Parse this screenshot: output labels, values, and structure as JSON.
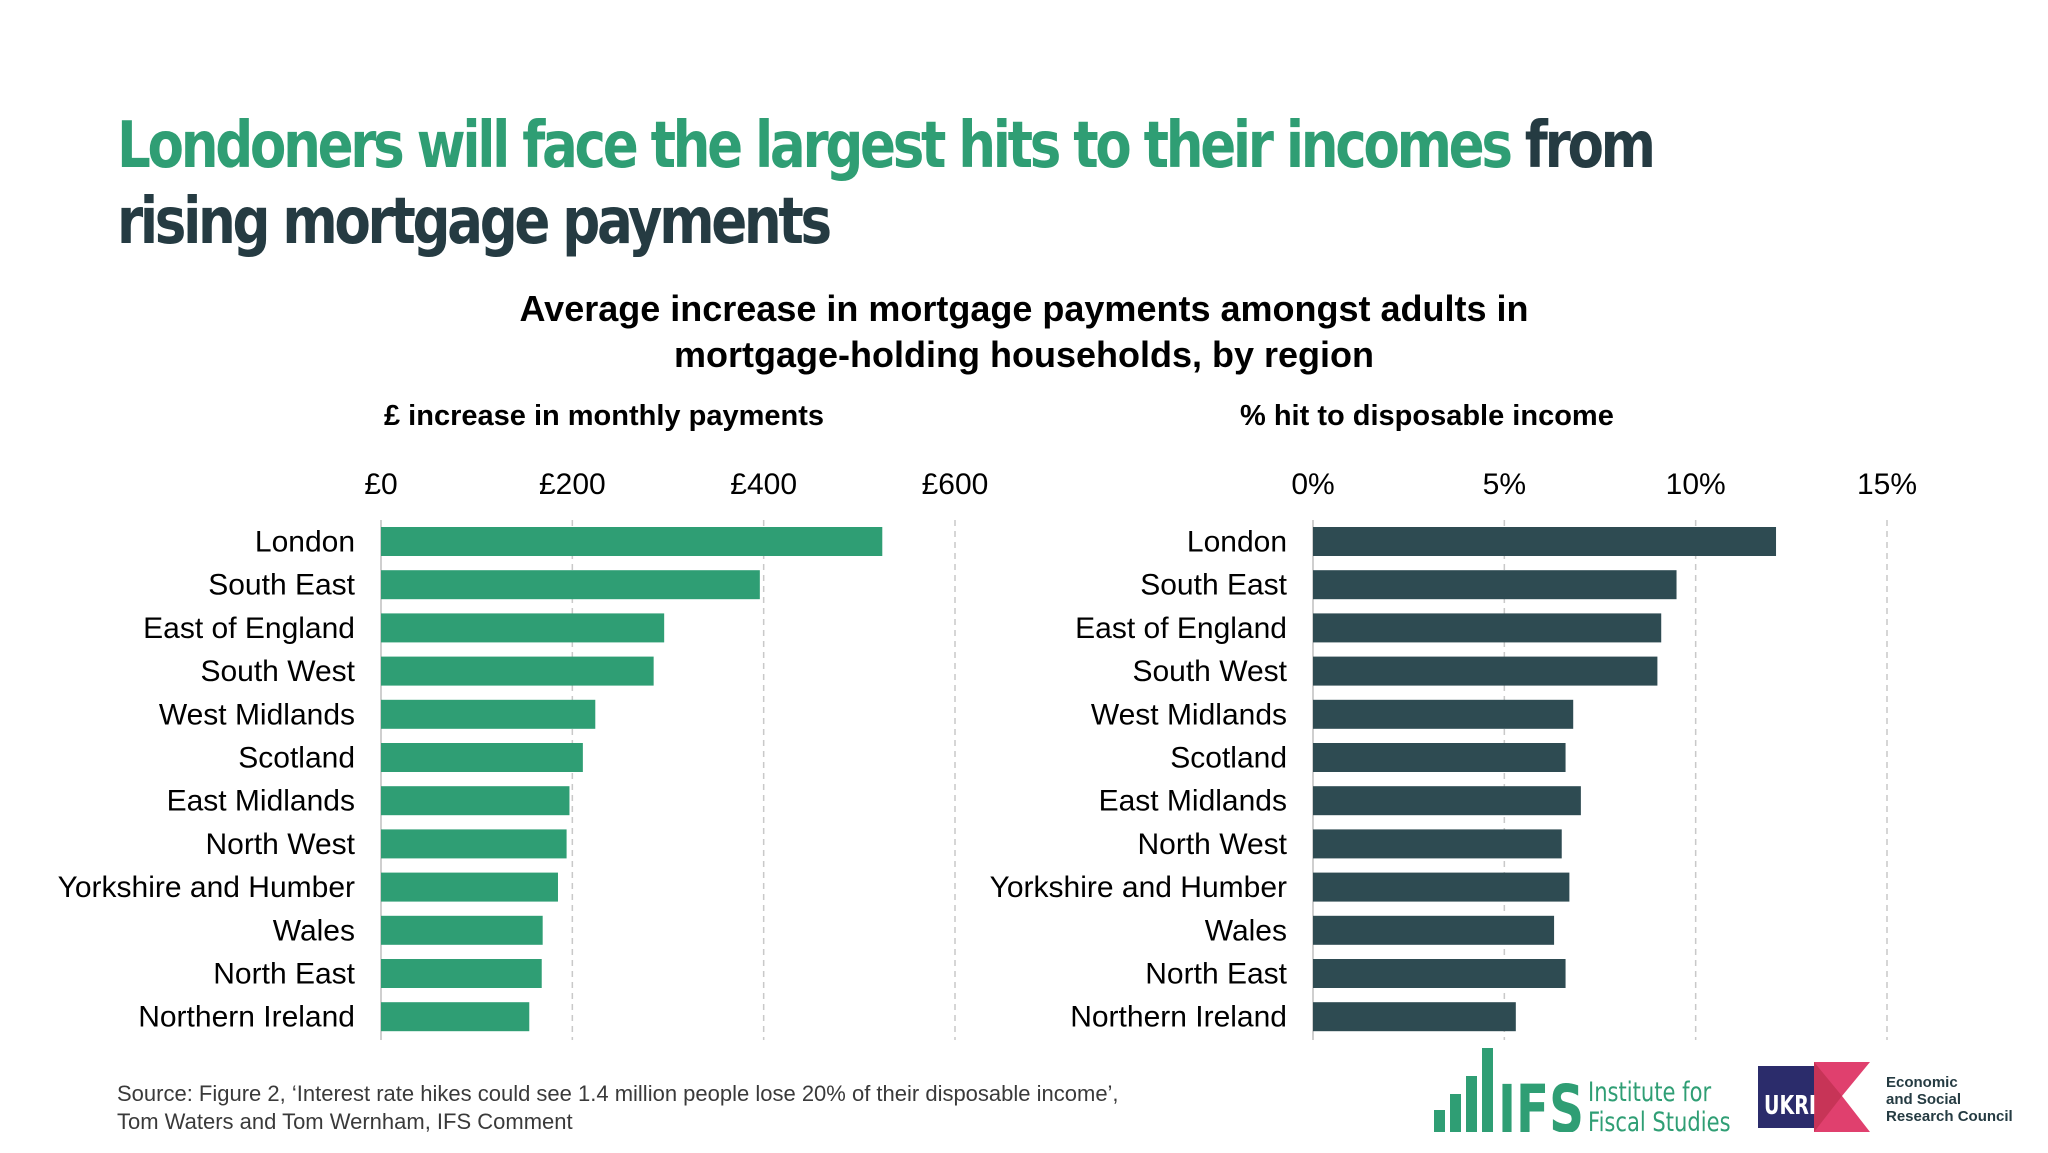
{
  "headline": {
    "highlight": "Londoners will face the largest hits to their incomes",
    "rest": " from rising mortgage payments"
  },
  "chart_title": {
    "line1": "Average increase in mortgage payments amongst adults in",
    "line2": "mortgage-holding households, by region"
  },
  "colors": {
    "headline_highlight": "#2f9e74",
    "headline_text": "#253b42",
    "left_bars": "#2f9e74",
    "right_bars": "#2e4b52",
    "grid": "#c9c9c9"
  },
  "chart_data": [
    {
      "type": "bar",
      "orientation": "horizontal",
      "title": "£ increase in monthly payments",
      "categories": [
        "London",
        "South East",
        "East of England",
        "South West",
        "West Midlands",
        "Scotland",
        "East Midlands",
        "North West",
        "Yorkshire and Humber",
        "Wales",
        "North East",
        "Northern Ireland"
      ],
      "values": [
        524,
        396,
        296,
        285,
        224,
        211,
        197,
        194,
        185,
        169,
        168,
        155
      ],
      "xlim": [
        0,
        600
      ],
      "xticks": [
        "£0",
        "£200",
        "£400",
        "£600"
      ],
      "tick_values": [
        0,
        200,
        400,
        600
      ],
      "grid": true,
      "grid_style": "dashed vertical"
    },
    {
      "type": "bar",
      "orientation": "horizontal",
      "title": "% hit to disposable income",
      "categories": [
        "London",
        "South East",
        "East of England",
        "South West",
        "West Midlands",
        "Scotland",
        "East Midlands",
        "North West",
        "Yorkshire and Humber",
        "Wales",
        "North East",
        "Northern Ireland"
      ],
      "values": [
        12.1,
        9.5,
        9.1,
        9.0,
        6.8,
        6.6,
        7.0,
        6.5,
        6.7,
        6.3,
        6.6,
        5.3
      ],
      "xlim": [
        0,
        15
      ],
      "xticks": [
        "0%",
        "5%",
        "10%",
        "15%"
      ],
      "tick_values": [
        0,
        5,
        10,
        15
      ],
      "grid": true,
      "grid_style": "dashed vertical"
    }
  ],
  "source": {
    "line1": "Source: Figure 2, ‘Interest rate hikes could see 1.4 million people lose 20% of their disposable income’,",
    "line2": "Tom Waters and Tom Wernham, IFS Comment"
  },
  "logos": {
    "ifs_mark": "IFS",
    "ifs_line1": "Institute for",
    "ifs_line2": "Fiscal Studies",
    "ukri_mark": "UKRI",
    "esrc_line1": "Economic",
    "esrc_line2": "and Social",
    "esrc_line3": "Research Council"
  }
}
